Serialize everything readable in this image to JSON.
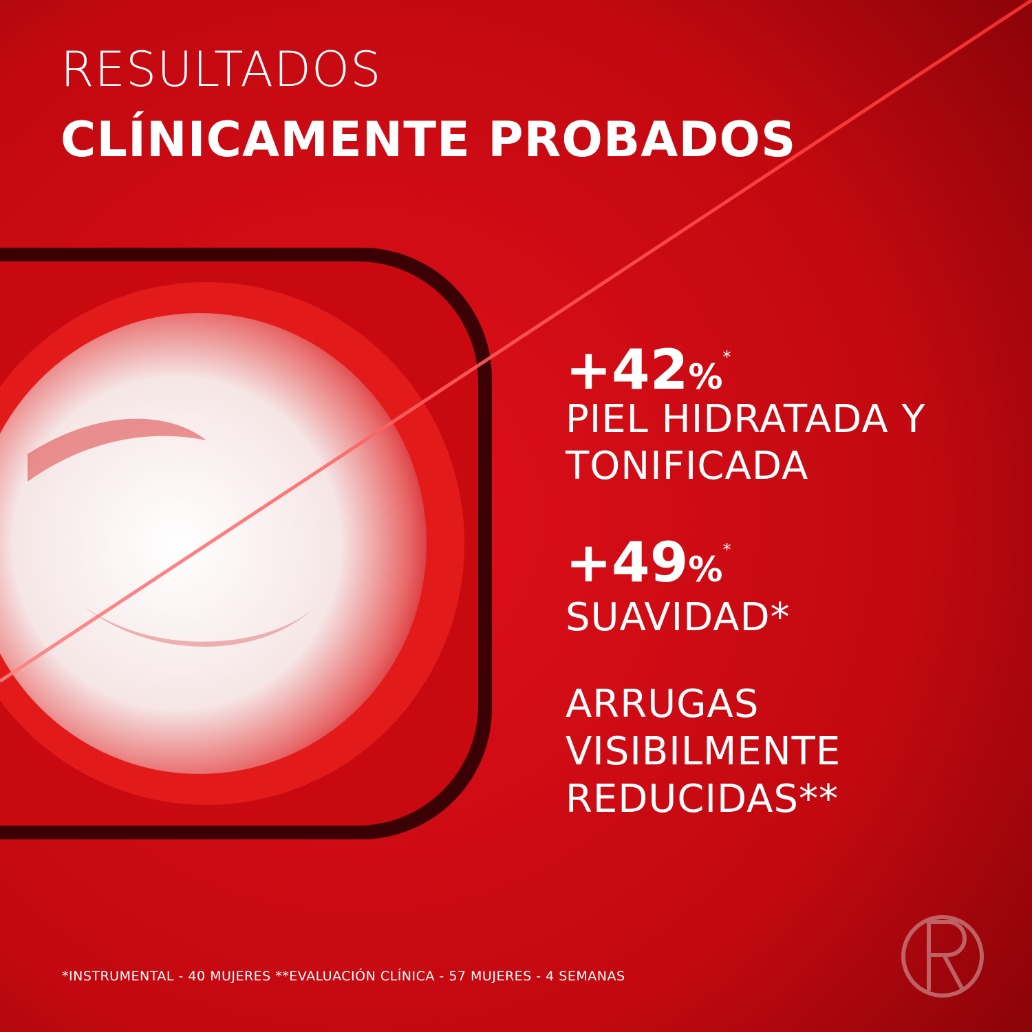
{
  "header": {
    "title_line1": "RESULTADOS",
    "title_line2": "CLÍNICAMENTE PROBADOS"
  },
  "claims": [
    {
      "stat": "+42",
      "unit": "%",
      "note": "*",
      "lines": [
        "PIEL HIDRATADA Y",
        "TONIFICADA"
      ]
    },
    {
      "stat": "+49",
      "unit": "%",
      "note": "*",
      "lines": [
        "SUAVIDAD*"
      ]
    },
    {
      "lines": [
        "ARRUGAS",
        "VISIBILMENTE",
        "REDUCIDAS**"
      ]
    }
  ],
  "footnote": "*INSTRUMENTAL - 40 MUJERES **EVALUACIÓN CLÍNICA - 57 MUJERES - 4 SEMANAS"
}
